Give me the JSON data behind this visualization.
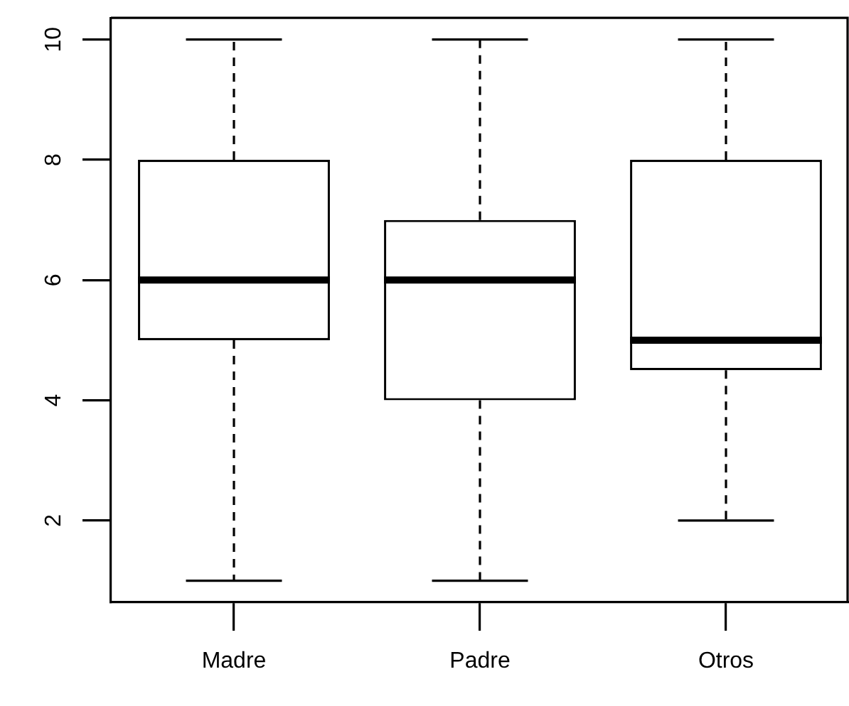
{
  "chart_data": {
    "type": "box",
    "categories": [
      "Madre",
      "Padre",
      "Otros"
    ],
    "boxes": [
      {
        "low": 1,
        "q1": 5,
        "median": 6,
        "q3": 8,
        "high": 10
      },
      {
        "low": 1,
        "q1": 4,
        "median": 6,
        "q3": 7,
        "high": 10
      },
      {
        "low": 2,
        "q1": 4.5,
        "median": 5,
        "q3": 8,
        "high": 10
      }
    ],
    "ylim": [
      0.64,
      10.36
    ],
    "yticks": [
      2,
      4,
      6,
      8,
      10
    ]
  }
}
